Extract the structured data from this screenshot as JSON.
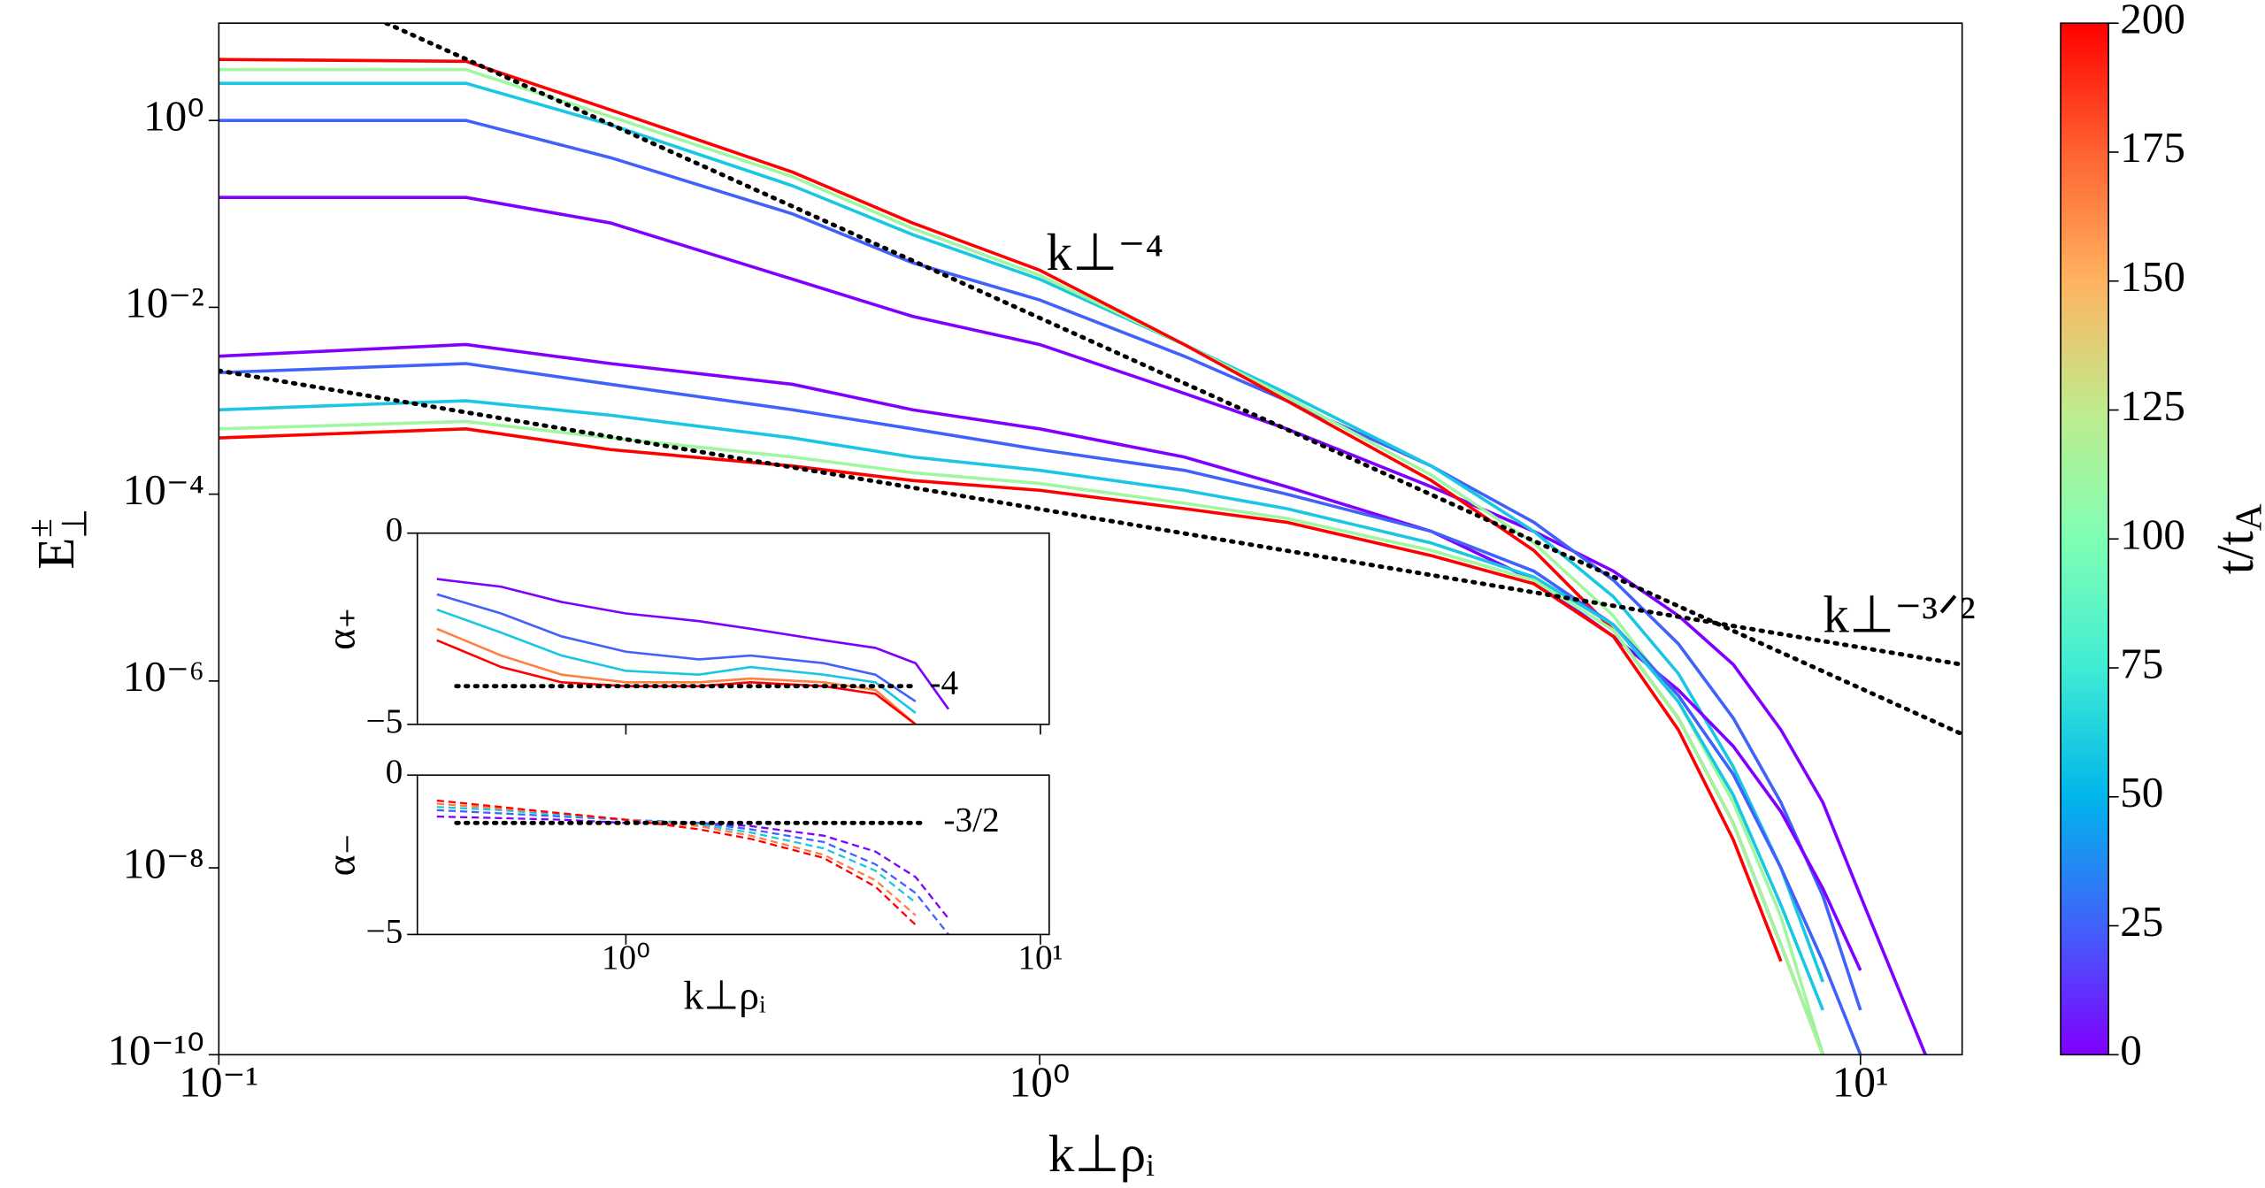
{
  "chart_data": [
    {
      "type": "line",
      "x_label": "k⊥ρᵢ",
      "y_label": {
        "base": "E",
        "sup": "±",
        "sub": "⊥"
      },
      "log_x": true,
      "log_y": true,
      "xlim": [
        0.1,
        13.3
      ],
      "ylim": [
        1e-10,
        11
      ],
      "xticks": [
        {
          "value": 0.1,
          "label": "10⁻¹"
        },
        {
          "value": 1,
          "label": "10⁰"
        },
        {
          "value": 10,
          "label": "10¹"
        }
      ],
      "yticks": [
        {
          "value": 1,
          "label": "10⁰"
        },
        {
          "value": 0.01,
          "label": "10⁻²"
        },
        {
          "value": 0.0001,
          "label": "10⁻⁴"
        },
        {
          "value": 1e-06,
          "label": "10⁻⁶"
        },
        {
          "value": 1e-08,
          "label": "10⁻⁸"
        },
        {
          "value": 1e-10,
          "label": "10⁻¹⁰"
        }
      ],
      "x": [
        0.1,
        0.2,
        0.3,
        0.5,
        0.7,
        1,
        1.5,
        2,
        3,
        4,
        5,
        6,
        7,
        8,
        9,
        10,
        12
      ],
      "series": [
        {
          "color": "#8000ff",
          "values": [
            0.15,
            0.15,
            0.08,
            0.02,
            0.008,
            0.004,
            0.0012,
            0.0005,
            0.00012,
            4e-05,
            1.5e-05,
            5e-06,
            1.5e-06,
            3e-07,
            5e-08,
            5e-09,
            1e-10
          ]
        },
        {
          "color": "#4062fa",
          "values": [
            1.0,
            1.0,
            0.4,
            0.1,
            0.03,
            0.012,
            0.003,
            0.001,
            0.0002,
            5e-05,
            1.2e-05,
            2.5e-06,
            4e-07,
            5e-08,
            5e-09,
            3e-10,
            null
          ]
        },
        {
          "color": "#1ac7e3",
          "values": [
            2.5,
            2.5,
            0.9,
            0.2,
            0.06,
            0.02,
            0.004,
            0.0012,
            0.0002,
            4e-05,
            8e-06,
            1.2e-06,
            1.2e-07,
            1e-08,
            6e-10,
            null,
            null
          ]
        },
        {
          "color": "#a0f79f",
          "values": [
            3.5,
            3.5,
            1.1,
            0.25,
            0.07,
            0.022,
            0.004,
            0.0011,
            0.00016,
            3e-05,
            5e-06,
            6e-07,
            5e-08,
            3e-09,
            1e-10,
            null,
            null
          ]
        },
        {
          "color": "#ff0000",
          "values": [
            4.5,
            4.3,
            1.3,
            0.28,
            0.08,
            0.025,
            0.004,
            0.001,
            0.00014,
            2.5e-05,
            3.5e-06,
            4e-07,
            3e-08,
            1.5e-09,
            1e-10,
            null,
            null
          ]
        },
        {
          "color": "#8000ff",
          "values": [
            0.003,
            0.004,
            0.0025,
            0.0015,
            0.0008,
            0.0005,
            0.00025,
            0.00012,
            4e-05,
            1.2e-05,
            3e-06,
            8e-07,
            2e-07,
            4e-08,
            6e-09,
            8e-10,
            null
          ]
        },
        {
          "color": "#4062fa",
          "values": [
            0.002,
            0.0025,
            0.0015,
            0.0008,
            0.0005,
            0.0003,
            0.00018,
            0.0001,
            4e-05,
            1.5e-05,
            4e-06,
            7e-07,
            1e-07,
            1e-08,
            1e-09,
            1e-10,
            null
          ]
        },
        {
          "color": "#1ac7e3",
          "values": [
            0.0008,
            0.001,
            0.0007,
            0.0004,
            0.00025,
            0.00018,
            0.00011,
            7e-05,
            3e-05,
            1.3e-05,
            4e-06,
            6e-07,
            6e-08,
            4e-09,
            3e-10,
            null,
            null
          ]
        },
        {
          "color": "#a0f79f",
          "values": [
            0.0005,
            0.0006,
            0.0004,
            0.00025,
            0.00017,
            0.00013,
            8e-05,
            5.5e-05,
            2.5e-05,
            1.2e-05,
            3.5e-06,
            4e-07,
            3e-08,
            1.5e-09,
            1e-10,
            null,
            null
          ]
        },
        {
          "color": "#ff0000",
          "values": [
            0.0004,
            0.0005,
            0.0003,
            0.0002,
            0.00014,
            0.00011,
            7e-05,
            5e-05,
            2.2e-05,
            1.1e-05,
            3e-06,
            3e-07,
            2e-08,
            1e-09,
            null,
            null,
            null
          ]
        }
      ],
      "reference_lines": [
        {
          "x": [
            0.16,
            13.3
          ],
          "values": [
            11,
            2.7e-07
          ],
          "label": "k⊥⁻⁴"
        },
        {
          "x": [
            0.1,
            13.3
          ],
          "values": [
            0.0021,
            1.5e-06
          ],
          "label": "k⊥⁻³ᐟ²"
        }
      ],
      "colorbar": {
        "label": {
          "main": "t/t",
          "sub": "A"
        },
        "clim": [
          0,
          200
        ],
        "ticks": [
          0,
          25,
          50,
          75,
          100,
          125,
          150,
          175,
          200
        ],
        "colors": [
          "#8000ff",
          "#4062fa",
          "#00b5eb",
          "#40ecd4",
          "#80ffb4",
          "#c0eb8d",
          "#ffb360",
          "#ff6230",
          "#ff0000"
        ]
      }
    },
    {
      "type": "line",
      "y_label": "α₊",
      "log_x": true,
      "log_y": false,
      "show_xtick_labels": false,
      "xlim": [
        0.314,
        10.5
      ],
      "ylim": [
        -5,
        0
      ],
      "xticks": [
        1,
        10
      ],
      "yticks": [
        0,
        {
          "value": -5,
          "label": "−5"
        }
      ],
      "x": [
        0.35,
        0.5,
        0.7,
        1,
        1.5,
        2,
        3,
        4,
        5,
        6
      ],
      "series": [
        {
          "color": "#8000ff",
          "values": [
            -1.2,
            -1.4,
            -1.8,
            -2.1,
            -2.3,
            -2.5,
            -2.8,
            -3.0,
            -3.4,
            -4.6
          ]
        },
        {
          "color": "#4062fa",
          "values": [
            -1.6,
            -2.1,
            -2.7,
            -3.1,
            -3.3,
            -3.2,
            -3.4,
            -3.7,
            -4.4,
            null
          ]
        },
        {
          "color": "#1ac7e3",
          "values": [
            -2.0,
            -2.6,
            -3.2,
            -3.6,
            -3.7,
            -3.5,
            -3.7,
            -3.9,
            -4.7,
            null
          ]
        },
        {
          "color": "#ff7e41",
          "values": [
            -2.5,
            -3.2,
            -3.7,
            -3.9,
            -3.9,
            -3.8,
            -3.9,
            -4.1,
            -5.0,
            null
          ]
        },
        {
          "color": "#ff0000",
          "values": [
            -2.8,
            -3.5,
            -3.9,
            -4.0,
            -4.0,
            -3.9,
            -4.0,
            -4.2,
            -5.0,
            null
          ]
        }
      ],
      "reference_lines": [
        {
          "x": [
            0.39,
            4.9
          ],
          "values": [
            -4,
            -4
          ],
          "label": "-4"
        }
      ]
    },
    {
      "type": "line",
      "y_label": "α₋",
      "x_label": "k⊥ρᵢ",
      "log_x": true,
      "log_y": false,
      "show_xtick_labels": true,
      "dashed": true,
      "xlim": [
        0.314,
        10.5
      ],
      "ylim": [
        -5,
        0
      ],
      "xticks": [
        {
          "value": 1,
          "label": "10⁰"
        },
        {
          "value": 10,
          "label": "10¹"
        }
      ],
      "yticks": [
        0,
        {
          "value": -5,
          "label": "−5"
        }
      ],
      "x": [
        0.35,
        0.5,
        0.7,
        1,
        1.5,
        2,
        3,
        4,
        5,
        6
      ],
      "series": [
        {
          "color": "#8000ff",
          "values": [
            -1.3,
            -1.35,
            -1.4,
            -1.5,
            -1.5,
            -1.6,
            -1.9,
            -2.4,
            -3.2,
            -4.5
          ]
        },
        {
          "color": "#4062fa",
          "values": [
            -1.1,
            -1.2,
            -1.3,
            -1.4,
            -1.5,
            -1.7,
            -2.1,
            -2.8,
            -3.7,
            -5.0
          ]
        },
        {
          "color": "#1ac7e3",
          "values": [
            -1.0,
            -1.1,
            -1.25,
            -1.4,
            -1.55,
            -1.8,
            -2.3,
            -3.0,
            -4.0,
            null
          ]
        },
        {
          "color": "#ff7e41",
          "values": [
            -0.9,
            -1.05,
            -1.2,
            -1.4,
            -1.6,
            -1.9,
            -2.5,
            -3.3,
            -4.4,
            null
          ]
        },
        {
          "color": "#ff0000",
          "values": [
            -0.8,
            -1.0,
            -1.2,
            -1.4,
            -1.7,
            -2.0,
            -2.6,
            -3.5,
            -4.7,
            null
          ]
        }
      ],
      "reference_lines": [
        {
          "x": [
            0.39,
            5.3
          ],
          "values": [
            -1.5,
            -1.5
          ],
          "label": "-3/2"
        }
      ]
    }
  ]
}
